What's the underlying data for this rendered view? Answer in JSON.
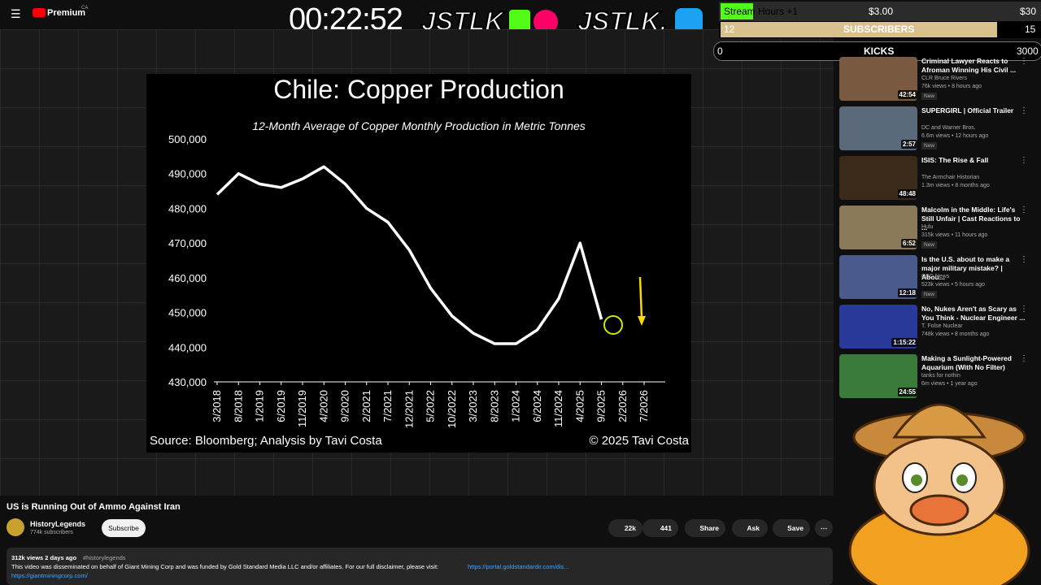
{
  "header": {
    "logo": "Premium",
    "country": "CA",
    "timer": "00:22:52",
    "brand_left": "JSTLK",
    "brand_right": "JSTLK."
  },
  "stream_widget": {
    "hours_label": "Stream Hours +1",
    "hours_amount": "$3.00",
    "hours_goal": "$30",
    "subs_current": "12",
    "subs_label": "SUBSCRIBERS",
    "subs_goal": "15",
    "kicks_current": "0",
    "kicks_label": "KICKS",
    "kicks_goal": "3000"
  },
  "chart_data": {
    "type": "line",
    "title": "Chile: Copper Production",
    "subtitle": "12-Month Average of Copper Monthly Production in Metric Tonnes",
    "categories": [
      "3/2018",
      "8/2018",
      "1/2019",
      "6/2019",
      "11/2019",
      "4/2020",
      "9/2020",
      "2/2021",
      "7/2021",
      "12/2021",
      "5/2022",
      "10/2022",
      "3/2023",
      "8/2023",
      "1/2024",
      "6/2024",
      "11/2024",
      "4/2025",
      "9/2025",
      "2/2026",
      "7/2026"
    ],
    "series": [
      {
        "name": "Copper production",
        "color": "#ffffff",
        "values": [
          484000,
          490000,
          487000,
          486000,
          488500,
          492000,
          487000,
          480000,
          476000,
          468000,
          457000,
          449000,
          444000,
          441000,
          441000,
          445000,
          454000,
          470000,
          448000,
          null,
          null
        ]
      }
    ],
    "ylim": [
      430000,
      500000
    ],
    "yticks": [
      {
        "value": 430000,
        "label": "430,000"
      },
      {
        "value": 440000,
        "label": "440,000"
      },
      {
        "value": 450000,
        "label": "450,000"
      },
      {
        "value": 460000,
        "label": "460,000"
      },
      {
        "value": 470000,
        "label": "470,000"
      },
      {
        "value": 480000,
        "label": "480,000"
      },
      {
        "value": 490000,
        "label": "490,000"
      },
      {
        "value": 500000,
        "label": "500,000"
      }
    ],
    "source": "Source: Bloomberg; Analysis by Tavi Costa",
    "copyright": "© 2025 Tavi Costa"
  },
  "video": {
    "title": "US is Running Out of Ammo Against Iran",
    "channel": "HistoryLegends",
    "subscribers": "774k subscribers",
    "subscribe": "Subscribe",
    "likes": "22k",
    "dislikes": "441",
    "share": "Share",
    "ask": "Ask",
    "save": "Save",
    "stats": "312k views  2 days ago",
    "hashtag": "#historylegends",
    "description": "This video was disseminated on behalf of Giant Mining Corp and was funded by Gold Standard Media LLC and/or affiliates. For our full disclaimer, please visit:",
    "disclaimer_link": "https://portal.goldstandardir.com/dis...",
    "site_link": "https://giantminingcorp.com/"
  },
  "recommendations": [
    {
      "title": "Criminal Lawyer Reacts to Afroman Winning His Civil ...",
      "channel": "CLR Bruce Rivers",
      "meta": "76k views • 8 hours ago",
      "badge": "New",
      "duration": "42:54"
    },
    {
      "title": "SUPERGIRL | Official Trailer",
      "channel": "DC and Warner Bros.",
      "meta": "6.6m views • 12 hours ago",
      "badge": "New",
      "duration": "2:57"
    },
    {
      "title": "ISIS: The Rise & Fall",
      "channel": "The Armchair Historian",
      "meta": "1.3m views • 8 months ago",
      "duration": "48:48"
    },
    {
      "title": "Malcolm in the Middle: Life's Still Unfair | Cast Reactions to ...",
      "channel": "Hulu",
      "meta": "315k views • 11 hours ago",
      "badge": "New",
      "duration": "6:52"
    },
    {
      "title": "Is the U.S. about to make a major military mistake? | Abou...",
      "channel": "CBC News",
      "meta": "523k views • 5 hours ago",
      "badge": "New",
      "duration": "12:18"
    },
    {
      "title": "No, Nukes Aren't as Scary as You Think - Nuclear Engineer ...",
      "channel": "T. Folse Nuclear",
      "meta": "748k views • 8 months ago",
      "duration": "1:15:22"
    },
    {
      "title": "Making a Sunlight-Powered Aquarium (With No Filter)",
      "channel": "tanks for nothin",
      "meta": "6m views • 1 year ago",
      "duration": "24:55"
    }
  ]
}
